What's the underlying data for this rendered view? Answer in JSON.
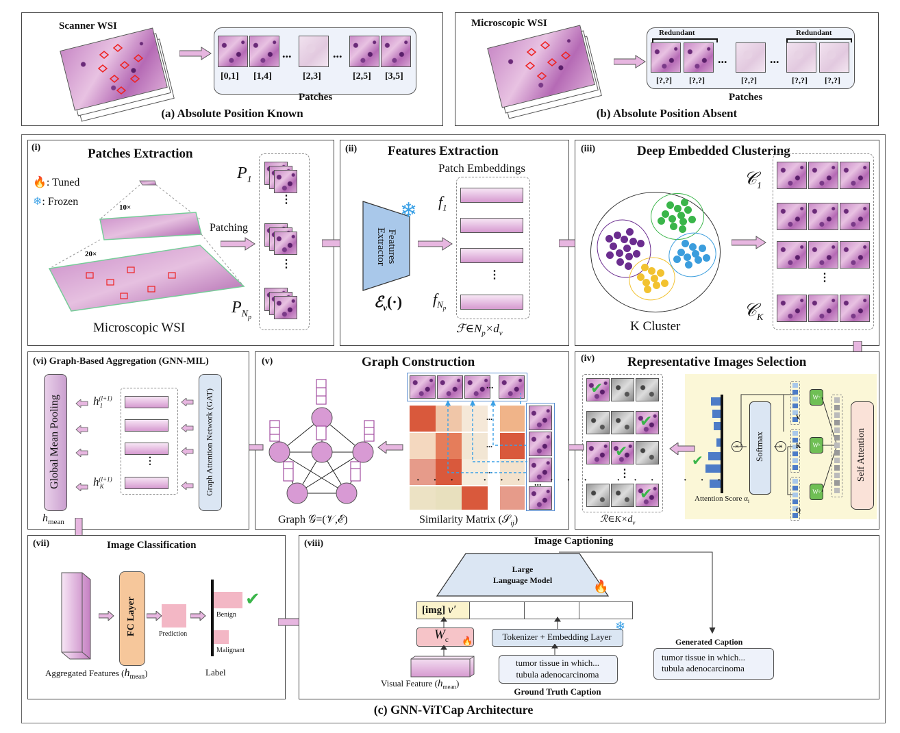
{
  "top_a": {
    "wsi_label": "Scanner WSI",
    "positions": [
      "[0,1]",
      "[1,4]",
      "[2,3]",
      "[2,5]",
      "[3,5]"
    ],
    "ellipsis": "...",
    "patches_label": "Patches",
    "caption": "(a) Absolute Position Known"
  },
  "top_b": {
    "wsi_label": "Microscopic WSI",
    "redundant": "Redundant",
    "positions": [
      "[?,?]",
      "[?,?]",
      "[?,?]",
      "[?,?]",
      "[?,?]"
    ],
    "ellipsis": "...",
    "patches_label": "Patches",
    "caption": "(b) Absolute Position Absent"
  },
  "stage_i": {
    "num": "(i)",
    "title": "Patches Extraction",
    "tuned": ": Tuned",
    "frozen": ": Frozen",
    "mag10": "10×",
    "mag20": "20×",
    "patching": "Patching",
    "p1": "P",
    "p1_sub": "1",
    "pn": "P",
    "pn_sub": "N",
    "pn_subsub": "p",
    "wsi": "Microscopic WSI"
  },
  "stage_ii": {
    "num": "(ii)",
    "title": "Features Extraction",
    "subtitle": "Patch Embeddings",
    "extractor": "Features Extractor",
    "encoder": "ℰ",
    "encoder_sub": "v",
    "encoder_tail": "(·)",
    "f1": "f",
    "f1_sub": "1",
    "fn": "f",
    "fn_sub": "N",
    "fn_subsub": "p",
    "formula": "ℱ∈N",
    "formula_sub": "p",
    "formula_tail": "×d",
    "formula_tail_sub": "v"
  },
  "stage_iii": {
    "num": "(iii)",
    "title": "Deep Embedded Clustering",
    "c1": "𝒞",
    "c1_sub": "1",
    "ck": "𝒞",
    "ck_sub": "K",
    "cluster_label": "K Cluster"
  },
  "stage_iv": {
    "num": "(iv)",
    "title": "Representative Images Selection",
    "softmax": "Softmax",
    "self_attention": "Self Attention",
    "v": "V",
    "k": "K",
    "q": "Q",
    "wv": "Wᵛ",
    "wk": "Wᵏ",
    "wq": "Wᵠ",
    "attention_score": "Attention Score α",
    "attention_score_sub": "i",
    "r_formula": "ℛ∈K×d",
    "r_formula_sub": "v"
  },
  "stage_v": {
    "num": "(v)",
    "title": "Graph Construction",
    "graph_label": "Graph 𝒢=(𝒱,ℰ)",
    "sim_label": "Similarity Matrix (𝒮",
    "sim_sub": "ij",
    "sim_tail": ")",
    "dots": "..."
  },
  "stage_vi": {
    "num": "(vi)",
    "title": "Graph-Based Aggregation (GNN-MIL)",
    "gmp": "Global Mean Pooling",
    "gat": "Graph Attention Network (GAT)",
    "h1": "h",
    "h1_sup": "(l+1)",
    "h1_sub": "1",
    "hk": "h",
    "hk_sup": "(l+1)",
    "hk_sub": "K",
    "hmean": "h",
    "hmean_sub": "mean"
  },
  "stage_vii": {
    "num": "(vii)",
    "title": "Image Classification",
    "fc": "FC Layer",
    "prediction": "Prediction",
    "benign": "Benign",
    "malignant": "Malignant",
    "agg": "Aggregated Features (",
    "agg_h": "h",
    "agg_sub": "mean",
    "agg_tail": ")",
    "label": "Label"
  },
  "stage_viii": {
    "num": "(viii)",
    "title": "Image Captioning",
    "llm_line1": "Large",
    "llm_line2": "Language Model",
    "img_token": "[img]",
    "v_prime": "v′",
    "wc": "W",
    "wc_sub": "c",
    "tokenizer": "Tokenizer + Embedding Layer",
    "gt_text1": "tumor tissue in which...",
    "gt_text2": "tubula adenocarcinoma",
    "gt_label": "Ground Truth Caption",
    "visual": "Visual Feature (",
    "visual_h": "h",
    "visual_sub": "mean",
    "visual_tail": ")",
    "gen_label": "Generated Caption",
    "gen_text1": "tumor tissue in which...",
    "gen_text2": "tubula adenocarcinoma"
  },
  "main_caption": "(c) GNN-ViTCap Architecture",
  "colors": {
    "pink_arrow": "#e7b6e0",
    "purple_cluster": "#6b2d8f",
    "green_cluster": "#3ab54a",
    "blue_cluster": "#3b9ddd",
    "yellow_cluster": "#f2c230",
    "extractor_blue": "#a9c8ea",
    "fc_orange": "#f6c79b",
    "llm_blue": "#dbe6f3",
    "attn_yellow": "#fbf7d7",
    "check_green": "#3ab54a"
  }
}
